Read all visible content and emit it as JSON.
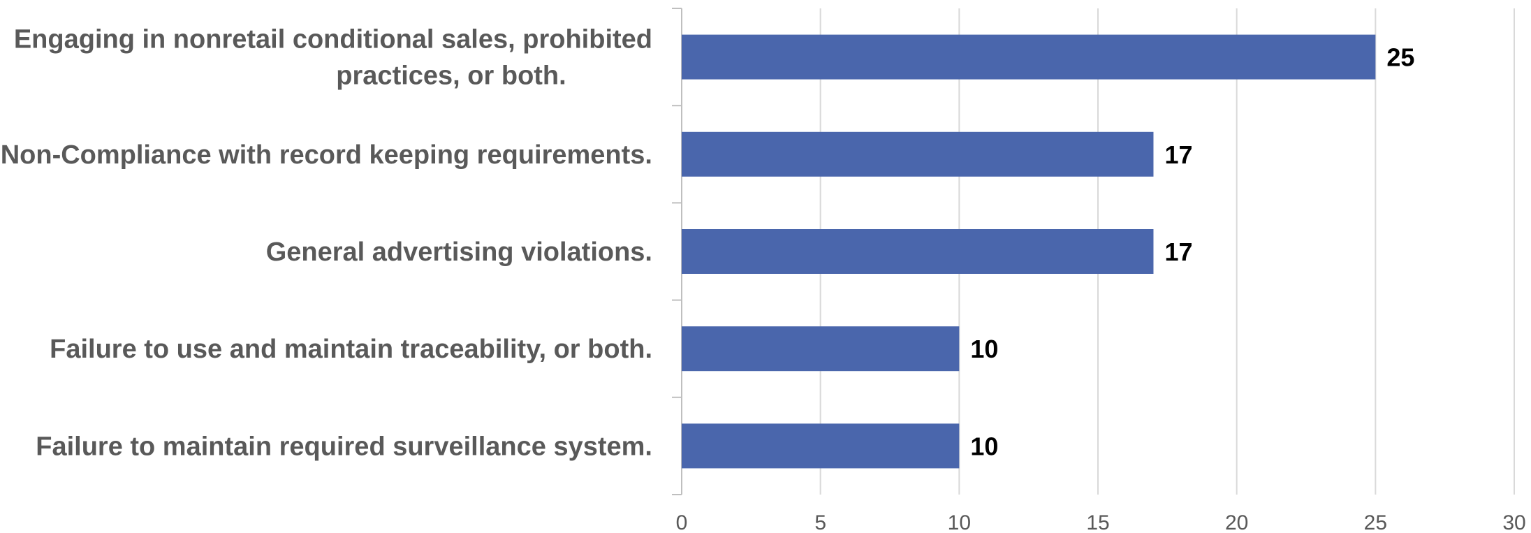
{
  "chart_data": {
    "type": "bar",
    "orientation": "horizontal",
    "categories": [
      [
        "Engaging in nonretail conditional sales, prohibited",
        "practices, or both."
      ],
      [
        "Non-Compliance with record keeping requirements."
      ],
      [
        "General advertising violations."
      ],
      [
        "Failure to use and maintain traceability, or both."
      ],
      [
        "Failure to maintain required surveillance system."
      ]
    ],
    "values": [
      25,
      17,
      17,
      10,
      10
    ],
    "data_labels": [
      "25",
      "17",
      "17",
      "10",
      "10"
    ],
    "x_ticks": [
      "0",
      "5",
      "10",
      "15",
      "20",
      "25",
      "30"
    ],
    "xlim": [
      0,
      30
    ],
    "grid": true,
    "legend": "none",
    "colors": {
      "bar": "#4a66ac",
      "grid": "#d9d9d9",
      "category_text": "#595959",
      "data_label_text": "#000000"
    }
  }
}
